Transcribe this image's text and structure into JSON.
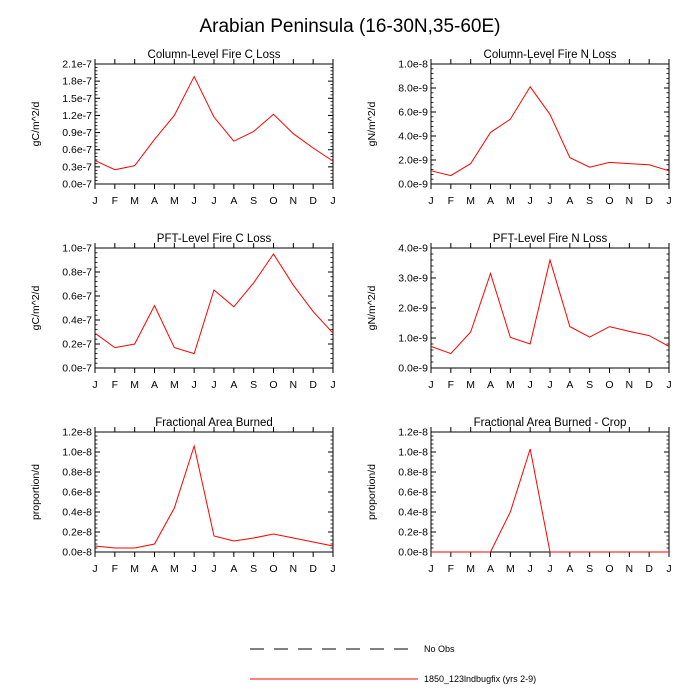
{
  "title": "Arabian Peninsula (16-30N,35-60E)",
  "legend": {
    "items": [
      {
        "label": "No Obs",
        "style": "dashed",
        "color": "#000000"
      },
      {
        "label": "1850_123lndbugfix (yrs 2-9)",
        "style": "solid",
        "color": "#ff0000"
      }
    ]
  },
  "chart_data": [
    {
      "type": "line",
      "title": "Column-Level Fire C Loss",
      "ylabel": "gC/m^2/d",
      "xlabel": "",
      "categories": [
        "J",
        "F",
        "M",
        "A",
        "M",
        "J",
        "J",
        "A",
        "S",
        "O",
        "N",
        "D",
        "J"
      ],
      "ylim": [
        0,
        2.1e-07
      ],
      "yticks": [
        "0.0e-7",
        "0.3e-7",
        "0.6e-7",
        "0.9e-7",
        "1.2e-7",
        "1.5e-7",
        "1.8e-7",
        "2.1e-7"
      ],
      "series": [
        {
          "name": "1850_123lndbugfix (yrs 2-9)",
          "color": "#ff0000",
          "values": [
            4.1e-08,
            2.5e-08,
            3.2e-08,
            7.8e-08,
            1.2e-07,
            1.88e-07,
            1.17e-07,
            7.5e-08,
            9.2e-08,
            1.22e-07,
            8.8e-08,
            6.3e-08,
            4e-08
          ]
        }
      ]
    },
    {
      "type": "line",
      "title": "Column-Level Fire N Loss",
      "ylabel": "gN/m^2/d",
      "xlabel": "",
      "categories": [
        "J",
        "F",
        "M",
        "A",
        "M",
        "J",
        "J",
        "A",
        "S",
        "O",
        "N",
        "D",
        "J"
      ],
      "ylim": [
        0,
        1e-08
      ],
      "yticks": [
        "0.0e-9",
        "2.0e-9",
        "4.0e-9",
        "6.0e-9",
        "8.0e-9",
        "1.0e-8"
      ],
      "series": [
        {
          "name": "1850_123lndbugfix (yrs 2-9)",
          "color": "#ff0000",
          "values": [
            1.1e-09,
            7e-10,
            1.7e-09,
            4.3e-09,
            5.4e-09,
            8.1e-09,
            5.8e-09,
            2.2e-09,
            1.4e-09,
            1.8e-09,
            1.7e-09,
            1.6e-09,
            1.1e-09
          ]
        }
      ]
    },
    {
      "type": "line",
      "title": "PFT-Level Fire C Loss",
      "ylabel": "gC/m^2/d",
      "xlabel": "",
      "categories": [
        "J",
        "F",
        "M",
        "A",
        "M",
        "J",
        "J",
        "A",
        "S",
        "O",
        "N",
        "D",
        "J"
      ],
      "ylim": [
        0,
        1e-07
      ],
      "yticks": [
        "0.0e-7",
        "0.2e-7",
        "0.4e-7",
        "0.6e-7",
        "0.8e-7",
        "1.0e-7"
      ],
      "series": [
        {
          "name": "1850_123lndbugfix (yrs 2-9)",
          "color": "#ff0000",
          "values": [
            2.9e-08,
            1.7e-08,
            2e-08,
            5.2e-08,
            1.7e-08,
            1.2e-08,
            6.5e-08,
            5.1e-08,
            7.1e-08,
            9.5e-08,
            6.9e-08,
            4.7e-08,
            2.9e-08
          ]
        }
      ]
    },
    {
      "type": "line",
      "title": "PFT-Level Fire N Loss",
      "ylabel": "gN/m^2/d",
      "xlabel": "",
      "categories": [
        "J",
        "F",
        "M",
        "A",
        "M",
        "J",
        "J",
        "A",
        "S",
        "O",
        "N",
        "D",
        "J"
      ],
      "ylim": [
        0,
        4e-09
      ],
      "yticks": [
        "0.0e-9",
        "1.0e-9",
        "2.0e-9",
        "3.0e-9",
        "4.0e-9"
      ],
      "series": [
        {
          "name": "1850_123lndbugfix (yrs 2-9)",
          "color": "#ff0000",
          "values": [
            7.2e-10,
            4.8e-10,
            1.2e-09,
            3.15e-09,
            1.02e-09,
            8e-10,
            3.6e-09,
            1.38e-09,
            1.03e-09,
            1.38e-09,
            1.22e-09,
            1.08e-09,
            7.2e-10
          ]
        }
      ]
    },
    {
      "type": "line",
      "title": "Fractional Area Burned",
      "ylabel": "proportion/d",
      "xlabel": "",
      "categories": [
        "J",
        "F",
        "M",
        "A",
        "M",
        "J",
        "J",
        "A",
        "S",
        "O",
        "N",
        "D",
        "J"
      ],
      "ylim": [
        0,
        1.2e-08
      ],
      "yticks": [
        "0.0e-8",
        "0.2e-8",
        "0.4e-8",
        "0.6e-8",
        "0.8e-8",
        "1.0e-8",
        "1.2e-8"
      ],
      "series": [
        {
          "name": "1850_123lndbugfix (yrs 2-9)",
          "color": "#ff0000",
          "values": [
            6e-10,
            4e-10,
            4e-10,
            8e-10,
            4.4e-09,
            1.06e-08,
            1.6e-09,
            1.1e-09,
            1.4e-09,
            1.8e-09,
            1.4e-09,
            1e-09,
            6e-10
          ]
        }
      ]
    },
    {
      "type": "line",
      "title": "Fractional Area Burned - Crop",
      "ylabel": "proportion/d",
      "xlabel": "",
      "categories": [
        "J",
        "F",
        "M",
        "A",
        "M",
        "J",
        "J",
        "A",
        "S",
        "O",
        "N",
        "D",
        "J"
      ],
      "ylim": [
        0,
        1.2e-08
      ],
      "yticks": [
        "0.0e-8",
        "0.2e-8",
        "0.4e-8",
        "0.6e-8",
        "0.8e-8",
        "1.0e-8",
        "1.2e-8"
      ],
      "series": [
        {
          "name": "1850_123lndbugfix (yrs 2-9)",
          "color": "#ff0000",
          "values": [
            0,
            0,
            0,
            0,
            4e-09,
            1.03e-08,
            0,
            0,
            0,
            0,
            0,
            0,
            0
          ]
        }
      ]
    }
  ]
}
